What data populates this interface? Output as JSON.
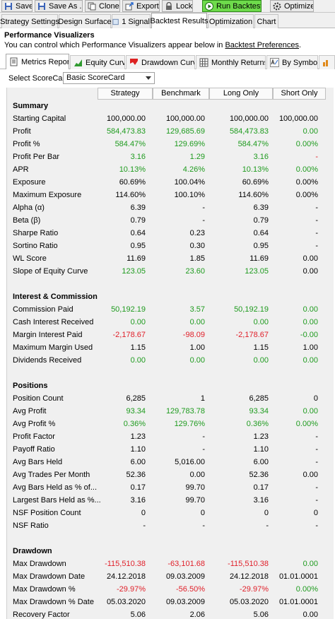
{
  "toolbar": {
    "save": "Save",
    "save_as": "Save As ...",
    "clone": "Clone",
    "export": "Export",
    "lock": "Lock",
    "run": "Run Backtest",
    "optimize": "Optimize"
  },
  "tabs": [
    "Strategy Settings",
    "Design Surface",
    "1 Signal",
    "Backtest Results",
    "Optimization",
    "Chart"
  ],
  "header": {
    "title": "Performance Visualizers",
    "desc_prefix": "You can control which Performance Visualizers appear below in ",
    "desc_link": "Backtest Preferences",
    "desc_suffix": "."
  },
  "inner_tabs": [
    "Metrics Report",
    "Equity Curve",
    "Drawdown Curve",
    "Monthly Returns",
    "By Symbol",
    "D"
  ],
  "scorecard": {
    "label": "Select ScoreCard:",
    "value": "Basic ScoreCard"
  },
  "columns": [
    "Strategy",
    "Benchmark",
    "Long Only",
    "Short Only"
  ],
  "rows": [
    {
      "type": "section",
      "label": "Summary"
    },
    {
      "label": "Starting Capital",
      "v": [
        "100,000.00",
        "100,000.00",
        "100,000.00",
        "100,000.00"
      ],
      "c": [
        "",
        "",
        "",
        ""
      ]
    },
    {
      "label": "Profit",
      "v": [
        "584,473.83",
        "129,685.69",
        "584,473.83",
        "0.00"
      ],
      "c": [
        "g",
        "g",
        "g",
        "g"
      ]
    },
    {
      "label": "Profit %",
      "v": [
        "584.47%",
        "129.69%",
        "584.47%",
        "0.00%"
      ],
      "c": [
        "g",
        "g",
        "g",
        "g"
      ]
    },
    {
      "label": "Profit Per Bar",
      "v": [
        "3.16",
        "1.29",
        "3.16",
        "-"
      ],
      "c": [
        "g",
        "g",
        "g",
        "r"
      ]
    },
    {
      "label": "APR",
      "v": [
        "10.13%",
        "4.26%",
        "10.13%",
        "0.00%"
      ],
      "c": [
        "g",
        "g",
        "g",
        "g"
      ]
    },
    {
      "label": "Exposure",
      "v": [
        "60.69%",
        "100.04%",
        "60.69%",
        "0.00%"
      ],
      "c": [
        "",
        "",
        "",
        ""
      ]
    },
    {
      "label": "Maximum Exposure",
      "v": [
        "114.60%",
        "100.10%",
        "114.60%",
        "0.00%"
      ],
      "c": [
        "",
        "",
        "",
        ""
      ]
    },
    {
      "label": "Alpha (α)",
      "v": [
        "6.39",
        "-",
        "6.39",
        "-"
      ],
      "c": [
        "",
        "",
        "",
        ""
      ]
    },
    {
      "label": "Beta (β)",
      "v": [
        "0.79",
        "-",
        "0.79",
        "-"
      ],
      "c": [
        "",
        "",
        "",
        ""
      ]
    },
    {
      "label": "Sharpe Ratio",
      "v": [
        "0.64",
        "0.23",
        "0.64",
        "-"
      ],
      "c": [
        "",
        "",
        "",
        ""
      ]
    },
    {
      "label": "Sortino Ratio",
      "v": [
        "0.95",
        "0.30",
        "0.95",
        "-"
      ],
      "c": [
        "",
        "",
        "",
        ""
      ]
    },
    {
      "label": "WL Score",
      "v": [
        "11.69",
        "1.85",
        "11.69",
        "0.00"
      ],
      "c": [
        "",
        "",
        "",
        ""
      ]
    },
    {
      "label": "Slope of Equity Curve",
      "v": [
        "123.05",
        "23.60",
        "123.05",
        "0.00"
      ],
      "c": [
        "g",
        "g",
        "g",
        ""
      ]
    },
    {
      "type": "blank"
    },
    {
      "type": "section",
      "label": "Interest & Commission"
    },
    {
      "label": "Commission Paid",
      "v": [
        "50,192.19",
        "3.57",
        "50,192.19",
        "0.00"
      ],
      "c": [
        "g",
        "g",
        "g",
        "g"
      ]
    },
    {
      "label": "Cash Interest Received",
      "v": [
        "0.00",
        "0.00",
        "0.00",
        "0.00"
      ],
      "c": [
        "g",
        "g",
        "g",
        "g"
      ]
    },
    {
      "label": "Margin Interest Paid",
      "v": [
        "-2,178.67",
        "-98.09",
        "-2,178.67",
        "-0.00"
      ],
      "c": [
        "r",
        "r",
        "r",
        "g"
      ]
    },
    {
      "label": "Maximum Margin Used",
      "v": [
        "1.15",
        "1.00",
        "1.15",
        "1.00"
      ],
      "c": [
        "",
        "",
        "",
        ""
      ]
    },
    {
      "label": "Dividends Received",
      "v": [
        "0.00",
        "0.00",
        "0.00",
        "0.00"
      ],
      "c": [
        "g",
        "g",
        "g",
        "g"
      ]
    },
    {
      "type": "blank"
    },
    {
      "type": "section",
      "label": "Positions"
    },
    {
      "label": "Position Count",
      "v": [
        "6,285",
        "1",
        "6,285",
        "0"
      ],
      "c": [
        "",
        "",
        "",
        ""
      ]
    },
    {
      "label": "Avg Profit",
      "v": [
        "93.34",
        "129,783.78",
        "93.34",
        "0.00"
      ],
      "c": [
        "g",
        "g",
        "g",
        "g"
      ]
    },
    {
      "label": "Avg Profit %",
      "v": [
        "0.36%",
        "129.76%",
        "0.36%",
        "0.00%"
      ],
      "c": [
        "g",
        "g",
        "g",
        "g"
      ]
    },
    {
      "label": "Profit Factor",
      "v": [
        "1.23",
        "-",
        "1.23",
        "-"
      ],
      "c": [
        "",
        "",
        "",
        ""
      ]
    },
    {
      "label": "Payoff Ratio",
      "v": [
        "1.10",
        "-",
        "1.10",
        "-"
      ],
      "c": [
        "",
        "",
        "",
        ""
      ]
    },
    {
      "label": "Avg Bars Held",
      "v": [
        "6.00",
        "5,016.00",
        "6.00",
        "-"
      ],
      "c": [
        "",
        "",
        "",
        ""
      ]
    },
    {
      "label": "Avg Trades Per Month",
      "v": [
        "52.36",
        "0.00",
        "52.36",
        "0.00"
      ],
      "c": [
        "",
        "",
        "",
        ""
      ]
    },
    {
      "label": "Avg Bars Held as % of...",
      "v": [
        "0.17",
        "99.70",
        "0.17",
        "-"
      ],
      "c": [
        "",
        "",
        "",
        ""
      ]
    },
    {
      "label": "Largest Bars Held as %...",
      "v": [
        "3.16",
        "99.70",
        "3.16",
        "-"
      ],
      "c": [
        "",
        "",
        "",
        ""
      ]
    },
    {
      "label": "NSF Position Count",
      "v": [
        "0",
        "0",
        "0",
        "0"
      ],
      "c": [
        "",
        "",
        "",
        ""
      ]
    },
    {
      "label": "NSF Ratio",
      "v": [
        "-",
        "-",
        "-",
        "-"
      ],
      "c": [
        "",
        "",
        "",
        ""
      ]
    },
    {
      "type": "blank"
    },
    {
      "type": "section",
      "label": "Drawdown"
    },
    {
      "label": "Max Drawdown",
      "v": [
        "-115,510.38",
        "-63,101.68",
        "-115,510.38",
        "0.00"
      ],
      "c": [
        "r",
        "r",
        "r",
        "g"
      ]
    },
    {
      "label": "Max Drawdown Date",
      "v": [
        "24.12.2018",
        "09.03.2009",
        "24.12.2018",
        "01.01.0001"
      ],
      "c": [
        "",
        "",
        "",
        ""
      ]
    },
    {
      "label": "Max Drawdown %",
      "v": [
        "-29.97%",
        "-56.50%",
        "-29.97%",
        "0.00%"
      ],
      "c": [
        "r",
        "r",
        "r",
        "g"
      ]
    },
    {
      "label": "Max Drawdown % Date",
      "v": [
        "05.03.2020",
        "09.03.2009",
        "05.03.2020",
        "01.01.0001"
      ],
      "c": [
        "",
        "",
        "",
        ""
      ]
    },
    {
      "label": "Recovery Factor",
      "v": [
        "5.06",
        "2.06",
        "5.06",
        "0.00"
      ],
      "c": [
        "",
        "",
        "",
        ""
      ]
    }
  ]
}
